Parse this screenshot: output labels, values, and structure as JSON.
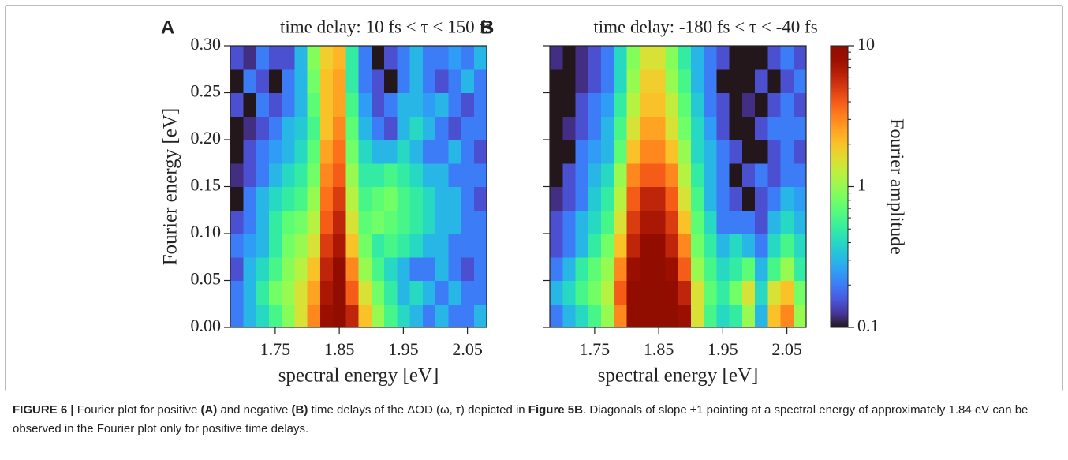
{
  "chart_data": [
    {
      "type": "heatmap",
      "panel_label": "A",
      "title": "time delay: 10 fs < τ < 150 fs",
      "xlabel": "spectral energy [eV]",
      "ylabel": "Fourier energy [eV]",
      "xlim": [
        1.68,
        2.08
      ],
      "ylim": [
        0,
        0.3
      ],
      "xticks": [
        1.75,
        1.85,
        1.95,
        2.05
      ],
      "yticks": [
        {
          "value": 0,
          "label": "0.00"
        },
        {
          "value": 0.05,
          "label": "0.05"
        },
        {
          "value": 0.1,
          "label": "0.10"
        },
        {
          "value": 0.15,
          "label": "0.15"
        },
        {
          "value": 0.2,
          "label": "0.20"
        },
        {
          "value": 0.25,
          "label": "0.25"
        },
        {
          "value": 0.3,
          "label": "0.30"
        }
      ],
      "x": [
        1.69,
        1.71,
        1.73,
        1.75,
        1.77,
        1.79,
        1.81,
        1.83,
        1.85,
        1.87,
        1.89,
        1.91,
        1.93,
        1.95,
        1.97,
        1.99,
        2.01,
        2.03,
        2.05,
        2.07
      ],
      "y": [
        0.0125,
        0.0375,
        0.0625,
        0.0875,
        0.1125,
        0.1375,
        0.1625,
        0.1875,
        0.2125,
        0.2375,
        0.2625,
        0.2875
      ],
      "z": [
        [
          0.2,
          0.3,
          0.4,
          0.6,
          0.9,
          1.5,
          3,
          8,
          10,
          6,
          2,
          1,
          0.6,
          0.4,
          0.3,
          0.2,
          0.3,
          0.2,
          0.2,
          0.3
        ],
        [
          0.2,
          0.3,
          0.5,
          0.8,
          1,
          1.5,
          2.5,
          7,
          10,
          4,
          1.5,
          0.8,
          0.5,
          0.3,
          0.4,
          0.3,
          0.2,
          0.3,
          0.2,
          0.2
        ],
        [
          0.15,
          0.3,
          0.4,
          0.6,
          0.9,
          1.2,
          2,
          6,
          9,
          3,
          1,
          0.6,
          0.4,
          0.3,
          0.2,
          0.2,
          0.3,
          0.2,
          0.15,
          0.2
        ],
        [
          0.2,
          0.25,
          0.3,
          0.5,
          0.8,
          1,
          1.5,
          5,
          7,
          2,
          0.8,
          0.5,
          0.6,
          0.5,
          0.4,
          0.3,
          0.3,
          0.2,
          0.2,
          0.2
        ],
        [
          0.15,
          0.2,
          0.3,
          0.5,
          0.7,
          0.8,
          1.2,
          4,
          6,
          1.5,
          0.7,
          0.8,
          0.7,
          0.6,
          0.5,
          0.4,
          0.3,
          0.3,
          0.2,
          0.2
        ],
        [
          0.1,
          0.2,
          0.3,
          0.4,
          0.5,
          0.6,
          1,
          3.5,
          5,
          1.2,
          0.6,
          0.7,
          0.8,
          0.6,
          0.5,
          0.4,
          0.3,
          0.3,
          0.2,
          0.15
        ],
        [
          0.12,
          0.15,
          0.2,
          0.3,
          0.4,
          0.5,
          0.8,
          3,
          4,
          1,
          0.5,
          0.5,
          0.6,
          0.5,
          0.4,
          0.3,
          0.3,
          0.2,
          0.2,
          0.2
        ],
        [
          0.1,
          0.15,
          0.2,
          0.25,
          0.3,
          0.4,
          0.7,
          2.5,
          3.5,
          0.8,
          0.4,
          0.3,
          0.3,
          0.4,
          0.3,
          0.2,
          0.2,
          0.3,
          0.2,
          0.15
        ],
        [
          0.1,
          0.12,
          0.15,
          0.2,
          0.3,
          0.35,
          0.6,
          2,
          3,
          0.7,
          0.3,
          0.2,
          0.15,
          0.3,
          0.4,
          0.3,
          0.2,
          0.15,
          0.2,
          0.2
        ],
        [
          0.15,
          0.1,
          0.2,
          0.15,
          0.2,
          0.3,
          0.7,
          2,
          2.5,
          0.6,
          0.25,
          0.15,
          0.2,
          0.3,
          0.3,
          0.25,
          0.3,
          0.2,
          0.15,
          0.2
        ],
        [
          0.1,
          0.2,
          0.15,
          0.1,
          0.2,
          0.3,
          0.8,
          2,
          2.5,
          0.5,
          0.2,
          0.15,
          0.1,
          0.2,
          0.3,
          0.2,
          0.15,
          0.2,
          0.3,
          0.2
        ],
        [
          0.15,
          0.12,
          0.2,
          0.15,
          0.15,
          0.3,
          0.9,
          1.8,
          2.2,
          0.5,
          0.2,
          0.1,
          0.15,
          0.2,
          0.3,
          0.2,
          0.2,
          0.25,
          0.2,
          0.3
        ]
      ]
    },
    {
      "type": "heatmap",
      "panel_label": "B",
      "title": "time delay: -180 fs < τ < -40 fs",
      "xlabel": "spectral energy [eV]",
      "ytick_labels": false,
      "xlim": [
        1.68,
        2.08
      ],
      "ylim": [
        0,
        0.3
      ],
      "xticks": [
        1.75,
        1.85,
        1.95,
        2.05
      ],
      "yticks": [
        0,
        0.05,
        0.1,
        0.15,
        0.2,
        0.25,
        0.3
      ],
      "x": [
        1.69,
        1.71,
        1.73,
        1.75,
        1.77,
        1.79,
        1.81,
        1.83,
        1.85,
        1.87,
        1.89,
        1.91,
        1.93,
        1.95,
        1.97,
        1.99,
        2.01,
        2.03,
        2.05,
        2.07
      ],
      "y": [
        0.0125,
        0.0375,
        0.0625,
        0.0875,
        0.1125,
        0.1375,
        0.1625,
        0.1875,
        0.2125,
        0.2375,
        0.2625,
        0.2875
      ],
      "z": [
        [
          0.2,
          0.3,
          0.4,
          0.6,
          1,
          3,
          10,
          10,
          10,
          10,
          8,
          1.5,
          0.6,
          0.4,
          0.5,
          1,
          0.3,
          2,
          3,
          1
        ],
        [
          0.3,
          0.4,
          0.6,
          0.8,
          1.2,
          4,
          9,
          10,
          10,
          9,
          6,
          1.5,
          0.7,
          0.5,
          0.8,
          1.5,
          0.4,
          1.5,
          2,
          0.8
        ],
        [
          0.2,
          0.3,
          0.5,
          0.7,
          1,
          3,
          8,
          10,
          10,
          8,
          4,
          1,
          0.6,
          0.4,
          0.5,
          0.7,
          0.3,
          0.6,
          1,
          0.5
        ],
        [
          0.15,
          0.2,
          0.3,
          0.5,
          0.8,
          2,
          6,
          9,
          9,
          6,
          3,
          0.8,
          0.5,
          0.3,
          0.4,
          0.3,
          0.2,
          0.4,
          0.6,
          0.4
        ],
        [
          0.15,
          0.2,
          0.3,
          0.4,
          0.6,
          1.5,
          5,
          7,
          7,
          5,
          2,
          0.7,
          0.4,
          0.2,
          0.2,
          0.2,
          0.15,
          0.3,
          0.4,
          0.3
        ],
        [
          0.12,
          0.15,
          0.2,
          0.35,
          0.5,
          1.2,
          4,
          6,
          6,
          4,
          1.5,
          0.6,
          0.3,
          0.2,
          0.15,
          0.1,
          0.15,
          0.2,
          0.3,
          0.25
        ],
        [
          0.1,
          0.15,
          0.2,
          0.3,
          0.4,
          1,
          3,
          4,
          4,
          3,
          1.2,
          0.5,
          0.3,
          0.2,
          0.1,
          0.15,
          0.2,
          0.15,
          0.2,
          0.2
        ],
        [
          0.1,
          0.1,
          0.2,
          0.25,
          0.3,
          0.7,
          2,
          3,
          3,
          2,
          1,
          0.4,
          0.3,
          0.2,
          0.15,
          0.1,
          0.1,
          0.15,
          0.2,
          0.15
        ],
        [
          0.1,
          0.12,
          0.15,
          0.2,
          0.3,
          0.6,
          1.5,
          2.5,
          2.5,
          1.5,
          0.8,
          0.4,
          0.25,
          0.15,
          0.1,
          0.1,
          0.15,
          0.2,
          0.2,
          0.2
        ],
        [
          0.1,
          0.1,
          0.15,
          0.2,
          0.25,
          0.5,
          1.2,
          2,
          2,
          1.3,
          0.7,
          0.35,
          0.2,
          0.15,
          0.1,
          0.12,
          0.1,
          0.15,
          0.2,
          0.15
        ],
        [
          0.1,
          0.1,
          0.12,
          0.15,
          0.2,
          0.4,
          1,
          1.8,
          1.8,
          1,
          0.6,
          0.3,
          0.2,
          0.1,
          0.1,
          0.1,
          0.15,
          0.1,
          0.15,
          0.2
        ],
        [
          0.12,
          0.1,
          0.12,
          0.15,
          0.2,
          0.4,
          0.9,
          1.5,
          1.5,
          0.9,
          0.5,
          0.3,
          0.2,
          0.15,
          0.1,
          0.1,
          0.1,
          0.15,
          0.2,
          0.15
        ]
      ]
    }
  ],
  "colorbar": {
    "label": "Fourier amplitude",
    "lim": [
      0.1,
      10
    ],
    "ticks": [
      0.1,
      1,
      10
    ],
    "log": true,
    "colormap": "turbo"
  },
  "caption": [
    {
      "text": "FIGURE 6 | ",
      "bold": true
    },
    {
      "text": "Fourier plot for positive ",
      "bold": false
    },
    {
      "text": "(A)",
      "bold": true
    },
    {
      "text": " and negative ",
      "bold": false
    },
    {
      "text": "(B)",
      "bold": true
    },
    {
      "text": " time delays of the ΔOD (ω, τ) depicted in ",
      "bold": false
    },
    {
      "text": "Figure 5B",
      "bold": true
    },
    {
      "text": ". Diagonals of slope ±1 pointing at a spectral energy of approximately 1.84 eV can be observed in the Fourier plot only for positive time delays.",
      "bold": false
    }
  ]
}
